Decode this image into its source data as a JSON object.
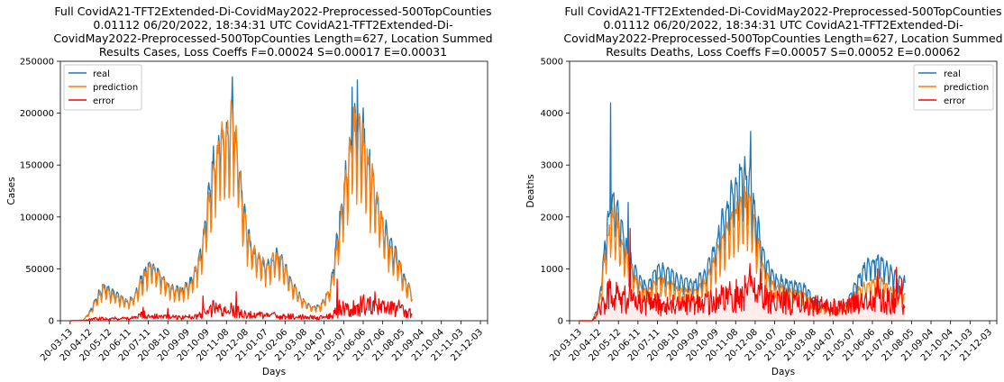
{
  "chart_data": [
    {
      "type": "line",
      "title": [
        "Full CovidA21-TFT2Extended-Di-CovidMay2022-Preprocessed-500TopCounties",
        "0.01112 06/20/2022, 18:34:31 UTC CovidA21-TFT2Extended-Di-",
        "CovidMay2022-Preprocessed-500TopCounties Length=627, Location Summed",
        "Results Cases, Loss Coeffs F=0.00024 S=0.00017 E=0.00031"
      ],
      "xlabel": "Days",
      "ylabel": "Cases",
      "ylim": [
        0,
        250000
      ],
      "yticks": [
        0,
        50000,
        100000,
        150000,
        200000,
        250000
      ],
      "ytick_labels": [
        "0",
        "50000",
        "100000",
        "150000",
        "200000",
        "250000"
      ],
      "xlim_days": [
        -15,
        641
      ],
      "xticks": [
        "20-03-13",
        "20-04-12",
        "20-05-12",
        "20-06-11",
        "20-07-11",
        "20-08-10",
        "20-09-09",
        "20-10-09",
        "20-11-08",
        "20-12-08",
        "21-01-07",
        "21-02-06",
        "21-03-08",
        "21-04-07",
        "21-05-07",
        "21-06-06",
        "21-07-06",
        "21-08-05",
        "21-09-04",
        "21-10-04",
        "21-11-03",
        "21-12-03"
      ],
      "legend": "upper left",
      "legend_entries": [
        "real",
        "prediction",
        "error"
      ],
      "colors": {
        "real": "#1f77b4",
        "prediction": "#ff7f0e",
        "error": "#ff0000"
      },
      "kind": "cases",
      "series": [
        {
          "name": "real",
          "anchors": [
            [
              0,
              0
            ],
            [
              20,
              500
            ],
            [
              30,
              8000
            ],
            [
              40,
              20000
            ],
            [
              50,
              32000
            ],
            [
              60,
              28000
            ],
            [
              75,
              22000
            ],
            [
              90,
              17000
            ],
            [
              100,
              24000
            ],
            [
              110,
              40000
            ],
            [
              125,
              52000
            ],
            [
              140,
              40000
            ],
            [
              155,
              30000
            ],
            [
              170,
              28000
            ],
            [
              185,
              35000
            ],
            [
              200,
              60000
            ],
            [
              210,
              100000
            ],
            [
              222,
              150000
            ],
            [
              232,
              170000
            ],
            [
              240,
              165000
            ],
            [
              250,
              185000
            ],
            [
              258,
              150000
            ],
            [
              265,
              110000
            ],
            [
              275,
              75000
            ],
            [
              285,
              60000
            ],
            [
              295,
              52000
            ],
            [
              305,
              50000
            ],
            [
              315,
              60000
            ],
            [
              325,
              55000
            ],
            [
              340,
              35000
            ],
            [
              355,
              20000
            ],
            [
              370,
              12000
            ],
            [
              385,
              14000
            ],
            [
              400,
              30000
            ],
            [
              413,
              90000
            ],
            [
              425,
              140000
            ],
            [
              435,
              190000
            ],
            [
              445,
              175000
            ],
            [
              455,
              150000
            ],
            [
              465,
              125000
            ],
            [
              475,
              100000
            ],
            [
              485,
              80000
            ],
            [
              495,
              65000
            ],
            [
              505,
              55000
            ],
            [
              515,
              35000
            ],
            [
              525,
              25000
            ]
          ],
          "weekly_amplitude": 0.35,
          "peaks": [
            [
              249,
              235000
            ],
            [
              415,
              100000
            ],
            [
              433,
              225000
            ],
            [
              441,
              232000
            ],
            [
              450,
              205000
            ],
            [
              460,
              165000
            ]
          ]
        },
        {
          "name": "prediction",
          "anchors": [
            [
              0,
              0
            ],
            [
              20,
              500
            ],
            [
              30,
              7000
            ],
            [
              40,
              18000
            ],
            [
              50,
              29000
            ],
            [
              60,
              26000
            ],
            [
              75,
              20000
            ],
            [
              90,
              16000
            ],
            [
              100,
              22000
            ],
            [
              110,
              36000
            ],
            [
              125,
              49000
            ],
            [
              140,
              38000
            ],
            [
              155,
              28000
            ],
            [
              170,
              26000
            ],
            [
              185,
              33000
            ],
            [
              200,
              56000
            ],
            [
              210,
              95000
            ],
            [
              222,
              140000
            ],
            [
              232,
              160000
            ],
            [
              240,
              160000
            ],
            [
              250,
              180000
            ],
            [
              258,
              145000
            ],
            [
              265,
              105000
            ],
            [
              275,
              70000
            ],
            [
              285,
              58000
            ],
            [
              295,
              50000
            ],
            [
              305,
              48000
            ],
            [
              315,
              57000
            ],
            [
              325,
              52000
            ],
            [
              340,
              33000
            ],
            [
              355,
              19000
            ],
            [
              370,
              12000
            ],
            [
              385,
              13000
            ],
            [
              400,
              28000
            ],
            [
              413,
              80000
            ],
            [
              425,
              130000
            ],
            [
              435,
              175000
            ],
            [
              445,
              165000
            ],
            [
              455,
              145000
            ],
            [
              465,
              120000
            ],
            [
              475,
              95000
            ],
            [
              485,
              75000
            ],
            [
              495,
              60000
            ],
            [
              505,
              50000
            ],
            [
              515,
              33000
            ],
            [
              525,
              25000
            ]
          ],
          "weekly_amplitude": 0.45
        },
        {
          "name": "error",
          "anchors": [
            [
              0,
              0
            ],
            [
              20,
              300
            ],
            [
              40,
              2000
            ],
            [
              100,
              2500
            ],
            [
              110,
              6000
            ],
            [
              130,
              4000
            ],
            [
              170,
              3000
            ],
            [
              200,
              5000
            ],
            [
              220,
              12000
            ],
            [
              250,
              10000
            ],
            [
              270,
              6000
            ],
            [
              300,
              5000
            ],
            [
              340,
              4000
            ],
            [
              380,
              3000
            ],
            [
              400,
              5000
            ],
            [
              420,
              12000
            ],
            [
              450,
              15000
            ],
            [
              480,
              12000
            ],
            [
              510,
              10000
            ],
            [
              525,
              8000
            ]
          ],
          "spikes": [
            [
              112,
              13000
            ],
            [
              150,
              12000
            ],
            [
              204,
              24000
            ],
            [
              255,
              28000
            ],
            [
              410,
              40000
            ],
            [
              413,
              20000
            ],
            [
              468,
              28000
            ],
            [
              505,
              20000
            ]
          ]
        }
      ]
    },
    {
      "type": "line",
      "title": [
        "Full CovidA21-TFT2Extended-Di-CovidMay2022-Preprocessed-500TopCounties",
        "0.01112 06/20/2022, 18:34:31 UTC CovidA21-TFT2Extended-Di-",
        "CovidMay2022-Preprocessed-500TopCounties Length=627, Location Summed",
        "Results Deaths, Loss Coeffs F=0.00057 S=0.00052 E=0.00062"
      ],
      "xlabel": "Days",
      "ylabel": "Deaths",
      "ylim": [
        0,
        5000
      ],
      "yticks": [
        0,
        1000,
        2000,
        3000,
        4000,
        5000
      ],
      "ytick_labels": [
        "0",
        "1000",
        "2000",
        "3000",
        "4000",
        "5000"
      ],
      "xlim_days": [
        -15,
        641
      ],
      "xticks": [
        "20-03-13",
        "20-04-12",
        "20-05-12",
        "20-06-11",
        "20-07-11",
        "20-08-10",
        "20-09-09",
        "20-10-09",
        "20-11-08",
        "20-12-08",
        "21-01-07",
        "21-02-06",
        "21-03-08",
        "21-04-07",
        "21-05-07",
        "21-06-06",
        "21-07-06",
        "21-08-05",
        "21-09-04",
        "21-10-04",
        "21-11-03",
        "21-12-03"
      ],
      "legend": "upper right",
      "legend_entries": [
        "real",
        "prediction",
        "error"
      ],
      "colors": {
        "real": "#1f77b4",
        "prediction": "#ff7f0e",
        "error": "#ff0000"
      },
      "kind": "deaths",
      "series": [
        {
          "name": "real",
          "anchors": [
            [
              0,
              0
            ],
            [
              20,
              0
            ],
            [
              30,
              300
            ],
            [
              40,
              1500
            ],
            [
              50,
              2200
            ],
            [
              60,
              2000
            ],
            [
              75,
              1200
            ],
            [
              90,
              800
            ],
            [
              105,
              600
            ],
            [
              120,
              1000
            ],
            [
              135,
              900
            ],
            [
              150,
              750
            ],
            [
              165,
              700
            ],
            [
              180,
              700
            ],
            [
              195,
              900
            ],
            [
              210,
              1400
            ],
            [
              222,
              1900
            ],
            [
              235,
              2300
            ],
            [
              250,
              2700
            ],
            [
              262,
              2500
            ],
            [
              272,
              1800
            ],
            [
              285,
              1100
            ],
            [
              300,
              800
            ],
            [
              315,
              700
            ],
            [
              330,
              650
            ],
            [
              345,
              600
            ],
            [
              360,
              400
            ],
            [
              375,
              250
            ],
            [
              390,
              200
            ],
            [
              410,
              300
            ],
            [
              425,
              700
            ],
            [
              440,
              1000
            ],
            [
              455,
              1100
            ],
            [
              470,
              1000
            ],
            [
              485,
              800
            ],
            [
              500,
              700
            ]
          ],
          "weekly_amplitude": 0.4,
          "peaks": [
            [
              48,
              4200
            ],
            [
              75,
              2280
            ],
            [
              263,
              3650
            ]
          ]
        },
        {
          "name": "prediction",
          "anchors": [
            [
              0,
              0
            ],
            [
              20,
              0
            ],
            [
              30,
              250
            ],
            [
              40,
              1200
            ],
            [
              50,
              1800
            ],
            [
              60,
              1600
            ],
            [
              75,
              1000
            ],
            [
              90,
              650
            ],
            [
              105,
              500
            ],
            [
              120,
              750
            ],
            [
              135,
              650
            ],
            [
              150,
              550
            ],
            [
              165,
              500
            ],
            [
              180,
              550
            ],
            [
              195,
              700
            ],
            [
              210,
              1100
            ],
            [
              222,
              1500
            ],
            [
              235,
              1800
            ],
            [
              250,
              2100
            ],
            [
              262,
              2000
            ],
            [
              272,
              1400
            ],
            [
              285,
              850
            ],
            [
              300,
              600
            ],
            [
              315,
              550
            ],
            [
              330,
              500
            ],
            [
              345,
              450
            ],
            [
              360,
              300
            ],
            [
              375,
              200
            ],
            [
              390,
              180
            ],
            [
              410,
              250
            ],
            [
              425,
              500
            ],
            [
              440,
              650
            ],
            [
              455,
              700
            ],
            [
              470,
              650
            ],
            [
              485,
              500
            ],
            [
              500,
              450
            ]
          ],
          "weekly_amplitude": 0.5
        },
        {
          "name": "error",
          "anchors": [
            [
              0,
              0
            ],
            [
              20,
              0
            ],
            [
              30,
              200
            ],
            [
              45,
              500
            ],
            [
              60,
              450
            ],
            [
              80,
              400
            ],
            [
              100,
              350
            ],
            [
              130,
              300
            ],
            [
              170,
              300
            ],
            [
              200,
              350
            ],
            [
              230,
              450
            ],
            [
              260,
              550
            ],
            [
              290,
              400
            ],
            [
              320,
              350
            ],
            [
              360,
              300
            ],
            [
              400,
              250
            ],
            [
              440,
              350
            ],
            [
              470,
              400
            ],
            [
              500,
              400
            ]
          ],
          "spikes": [
            [
              46,
              800
            ],
            [
              78,
              1780
            ],
            [
              262,
              1100
            ],
            [
              278,
              1000
            ],
            [
              458,
              1000
            ],
            [
              487,
              1030
            ],
            [
              495,
              800
            ]
          ]
        }
      ]
    }
  ]
}
